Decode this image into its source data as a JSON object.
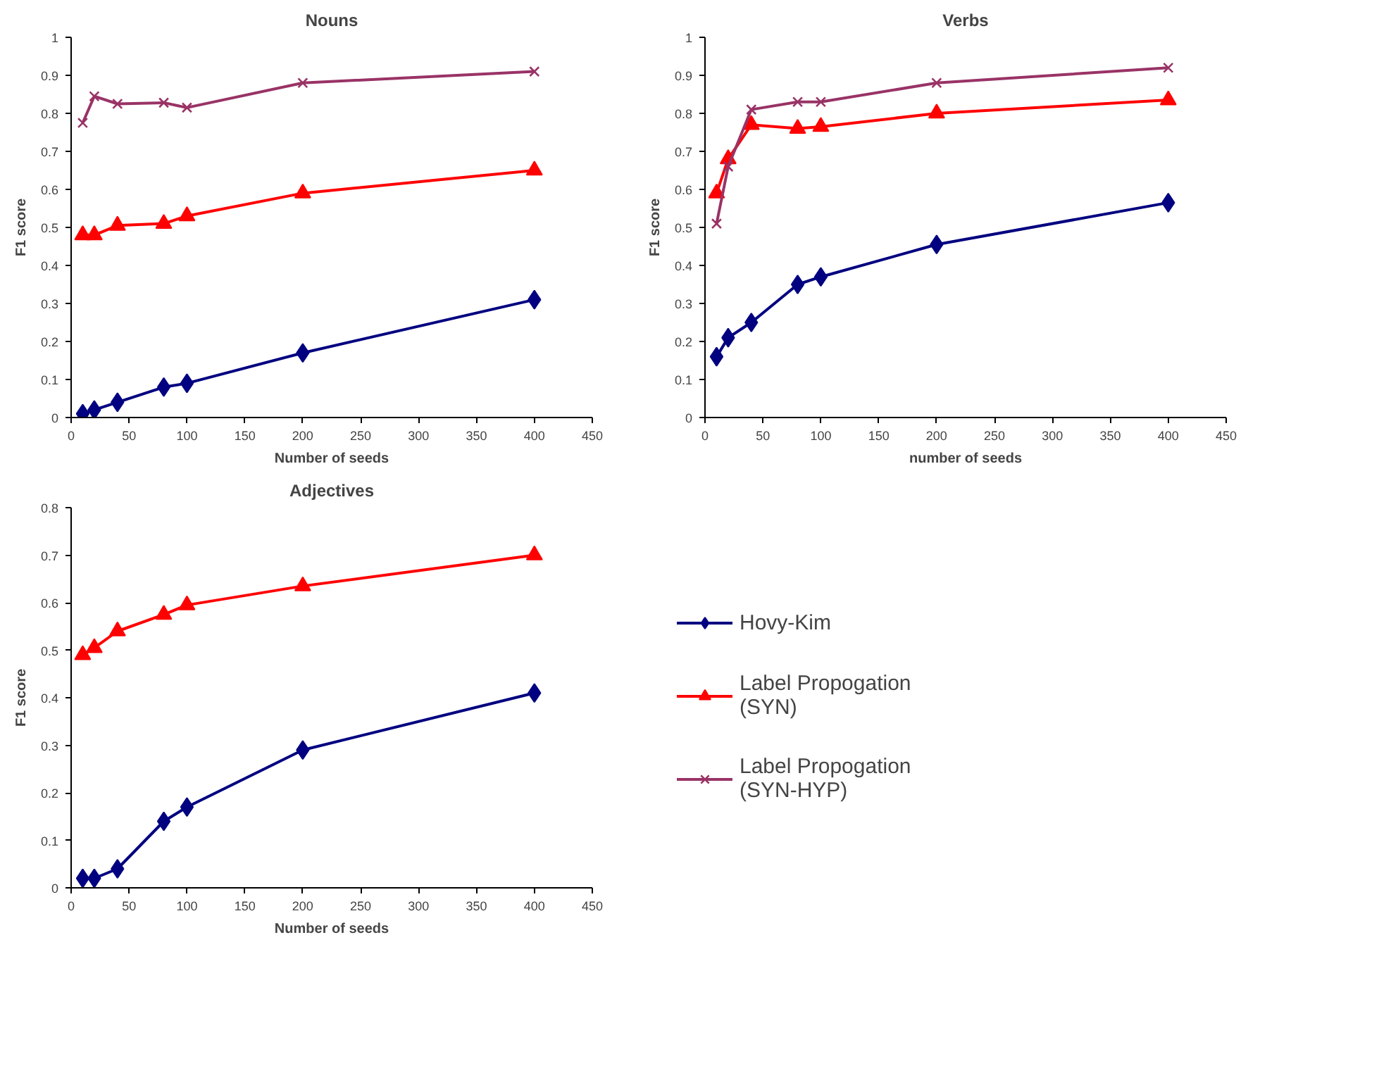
{
  "chart_data": [
    {
      "type": "line",
      "title": "Nouns",
      "xlabel": "Number of seeds",
      "ylabel": "F1 score",
      "x": [
        10,
        20,
        40,
        80,
        100,
        200,
        400
      ],
      "xlim": [
        0,
        450
      ],
      "xticks": [
        0,
        50,
        100,
        150,
        200,
        250,
        300,
        350,
        400,
        450
      ],
      "ylim": [
        0,
        1
      ],
      "yticks": [
        0,
        0.1,
        0.2,
        0.3,
        0.4,
        0.5,
        0.6,
        0.7,
        0.8,
        0.9,
        1
      ],
      "grid": false,
      "legend": false,
      "series": [
        {
          "color": "#000080",
          "marker": "diamond",
          "values": [
            0.01,
            0.02,
            0.04,
            0.08,
            0.09,
            0.17,
            0.31
          ]
        },
        {
          "color": "#ff0000",
          "marker": "triangle",
          "values": [
            0.48,
            0.48,
            0.505,
            0.51,
            0.53,
            0.59,
            0.65
          ]
        },
        {
          "color": "#993366",
          "marker": "cross",
          "values": [
            0.775,
            0.845,
            0.825,
            0.828,
            0.815,
            0.88,
            0.91
          ]
        }
      ]
    },
    {
      "type": "line",
      "title": "Verbs",
      "xlabel": "number of seeds",
      "ylabel": "F1 score",
      "x": [
        10,
        20,
        40,
        80,
        100,
        200,
        400
      ],
      "xlim": [
        0,
        450
      ],
      "xticks": [
        0,
        50,
        100,
        150,
        200,
        250,
        300,
        350,
        400,
        450
      ],
      "ylim": [
        0,
        1
      ],
      "yticks": [
        0,
        0.1,
        0.2,
        0.3,
        0.4,
        0.5,
        0.6,
        0.7,
        0.8,
        0.9,
        1
      ],
      "grid": false,
      "legend": false,
      "series": [
        {
          "color": "#000080",
          "marker": "diamond",
          "values": [
            0.16,
            0.21,
            0.25,
            0.35,
            0.37,
            0.455,
            0.565
          ]
        },
        {
          "color": "#ff0000",
          "marker": "triangle",
          "values": [
            0.59,
            0.68,
            0.77,
            0.76,
            0.765,
            0.8,
            0.835
          ]
        },
        {
          "color": "#993366",
          "marker": "cross",
          "values": [
            0.51,
            0.66,
            0.81,
            0.83,
            0.83,
            0.88,
            0.92
          ]
        }
      ]
    },
    {
      "type": "line",
      "title": "Adjectives",
      "xlabel": "Number of seeds",
      "ylabel": "F1 score",
      "x": [
        10,
        20,
        40,
        80,
        100,
        200,
        400
      ],
      "xlim": [
        0,
        450
      ],
      "xticks": [
        0,
        50,
        100,
        150,
        200,
        250,
        300,
        350,
        400,
        450
      ],
      "ylim": [
        0,
        0.8
      ],
      "yticks": [
        0,
        0.1,
        0.2,
        0.3,
        0.4,
        0.5,
        0.6,
        0.7,
        0.8
      ],
      "grid": false,
      "legend": "right",
      "series": [
        {
          "name": "Hovy-Kim",
          "color": "#000080",
          "marker": "diamond",
          "values": [
            0.02,
            0.02,
            0.04,
            0.14,
            0.17,
            0.29,
            0.41
          ]
        },
        {
          "name": "Label Propogation (SYN)",
          "color": "#ff0000",
          "marker": "triangle",
          "values": [
            0.49,
            0.505,
            0.54,
            0.575,
            0.595,
            0.635,
            0.7
          ]
        },
        {
          "name": "Label Propogation (SYN-HYP)",
          "color": "#993366",
          "marker": "cross",
          "values": [
            null,
            null,
            null,
            null,
            null,
            null,
            null
          ]
        }
      ]
    }
  ]
}
